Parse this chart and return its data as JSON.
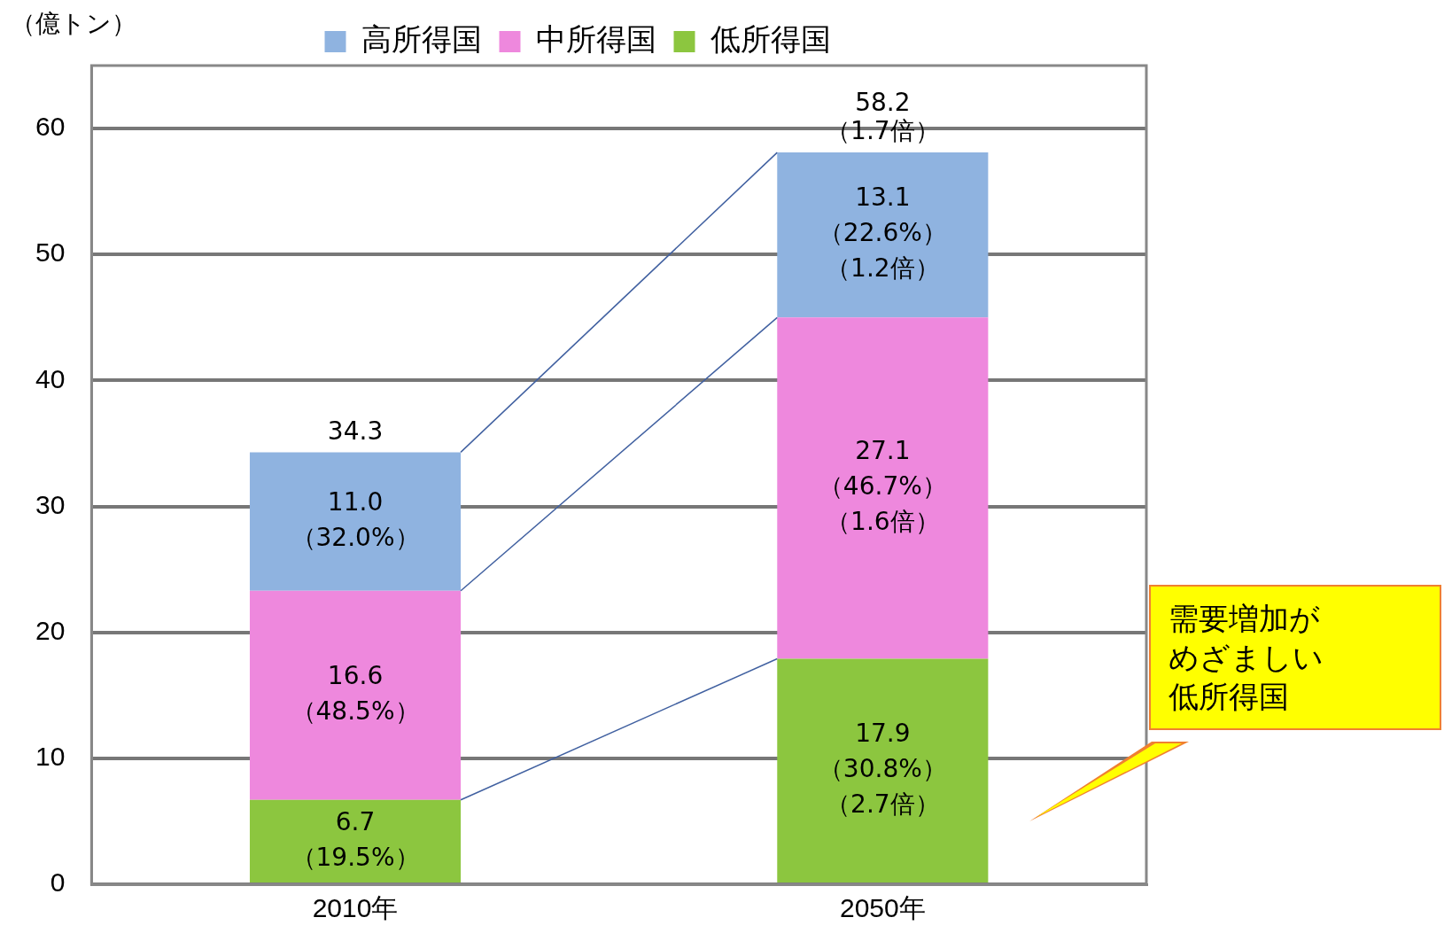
{
  "chart_data": {
    "type": "bar",
    "stacked": true,
    "ylabel": "（億トン）",
    "categories": [
      "2010年",
      "2050年"
    ],
    "series": [
      {
        "name": "低所得国",
        "color": "#8cc63f",
        "values": [
          6.7,
          17.9
        ],
        "value_labels": [
          "6.7\n（19.5%）",
          "17.9\n（30.8%）（2.7倍）"
        ]
      },
      {
        "name": "中所得国",
        "color": "#ee88dd",
        "values": [
          16.6,
          27.1
        ],
        "value_labels": [
          "16.6\n（48.5%）",
          "27.1\n（46.7%）（1.6倍）"
        ]
      },
      {
        "name": "高所得国",
        "color": "#8fb3e0",
        "values": [
          11.0,
          13.1
        ],
        "value_labels": [
          "11.0\n（32.0%）",
          "13.1\n（22.6%）（1.2倍）"
        ]
      }
    ],
    "totals": [
      "34.3",
      "58.2\n（1.7倍）"
    ],
    "ylim": [
      0,
      65
    ],
    "yticks": [
      0,
      10,
      20,
      30,
      40,
      50,
      60
    ],
    "grid": "y",
    "legend": "top",
    "annotations": [
      "需要増加がめざましい低所得国"
    ]
  }
}
